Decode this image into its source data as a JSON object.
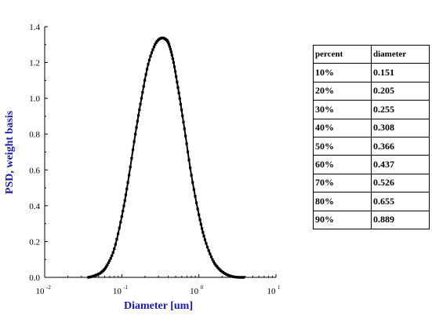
{
  "chart_data": {
    "type": "line",
    "xlabel": "Diameter [um]",
    "ylabel": "PSD, weight basis",
    "xscale": "log",
    "xlim": [
      0.01,
      10
    ],
    "ylim": [
      0,
      1.4
    ],
    "x_ticks": [
      {
        "base": "10",
        "exp": "-2",
        "value": 0.01
      },
      {
        "base": "10",
        "exp": "-1",
        "value": 0.1
      },
      {
        "base": "10",
        "exp": "0",
        "value": 1
      },
      {
        "base": "10",
        "exp": "1",
        "value": 10
      }
    ],
    "y_ticks": [
      "0.0",
      "0.2",
      "0.4",
      "0.6",
      "0.8",
      "1.0",
      "1.2",
      "1.4"
    ],
    "grid": false,
    "color": "#000000",
    "marker": "square",
    "series": [
      {
        "x": [
          0.037,
          0.045,
          0.055,
          0.065,
          0.08,
          0.1,
          0.12,
          0.15,
          0.18,
          0.22,
          0.27,
          0.32,
          0.37,
          0.41,
          0.47,
          0.55,
          0.65,
          0.8,
          1.0,
          1.2,
          1.5,
          1.8,
          2.2,
          2.7,
          3.3,
          3.8
        ],
        "y": [
          0.0,
          0.01,
          0.03,
          0.07,
          0.16,
          0.34,
          0.53,
          0.8,
          1.0,
          1.19,
          1.3,
          1.335,
          1.33,
          1.3,
          1.2,
          1.03,
          0.83,
          0.57,
          0.35,
          0.21,
          0.1,
          0.05,
          0.02,
          0.005,
          0.0,
          0.0
        ]
      }
    ],
    "line_color": "#000000"
  },
  "table": {
    "headers": [
      "percent",
      "diameter"
    ],
    "rows": [
      [
        "10%",
        "0.151"
      ],
      [
        "20%",
        "0.205"
      ],
      [
        "30%",
        "0.255"
      ],
      [
        "40%",
        "0.308"
      ],
      [
        "50%",
        "0.366"
      ],
      [
        "60%",
        "0.437"
      ],
      [
        "70%",
        "0.526"
      ],
      [
        "80%",
        "0.655"
      ],
      [
        "90%",
        "0.889"
      ]
    ]
  },
  "colors": {
    "axis_title": "#1a1aa6",
    "curve": "#000000"
  }
}
